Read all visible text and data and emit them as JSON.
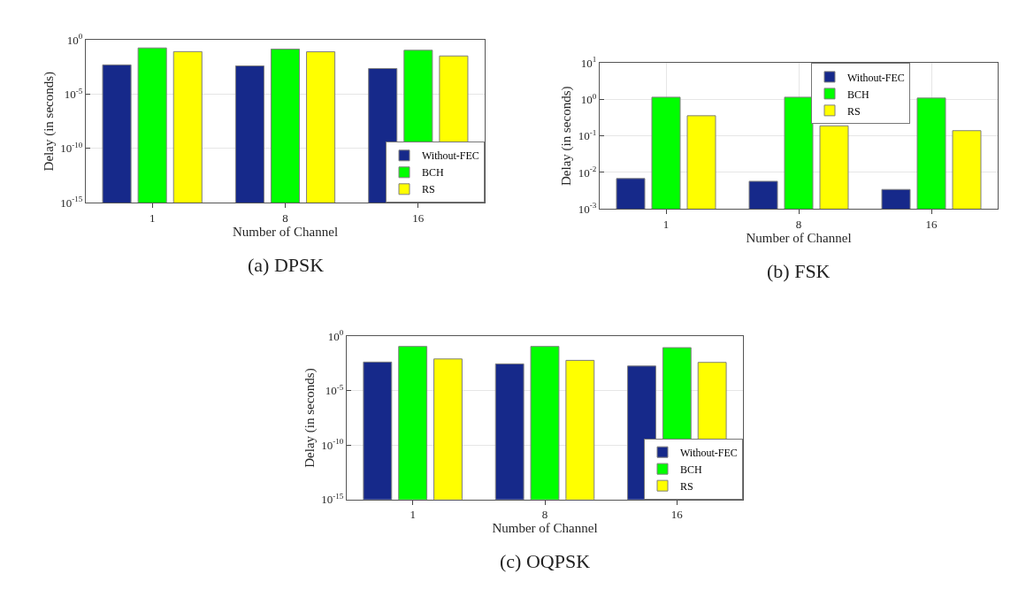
{
  "chart_data": [
    {
      "type": "bar",
      "title": "(a) DPSK",
      "xlabel": "Number of Channel",
      "ylabel": "Delay (in seconds)",
      "categories": [
        "1",
        "8",
        "16"
      ],
      "log": true,
      "grid": "y",
      "legend": "bottom right",
      "ylim": [
        1e-15,
        1
      ],
      "yticks": [
        {
          "value": 1e-15,
          "label": "10$^{-15}$"
        },
        {
          "value": 1e-10,
          "label": "10$^{-10}$"
        },
        {
          "value": 1e-05,
          "label": "10$^{-5}$"
        },
        {
          "value": 1,
          "label": "10$^{0}$"
        }
      ],
      "series": [
        {
          "name": "Without-FEC",
          "color": "#16298a",
          "values": [
            0.005,
            0.004,
            0.0023
          ]
        },
        {
          "name": "BCH",
          "color": "#00ff00",
          "values": [
            0.18,
            0.14,
            0.11
          ]
        },
        {
          "name": "RS",
          "color": "#ffff00",
          "values": [
            0.083,
            0.08,
            0.033
          ]
        }
      ]
    },
    {
      "type": "bar",
      "title": "(b) FSK",
      "xlabel": "Number of Channel",
      "ylabel": "Delay (in seconds)",
      "categories": [
        "1",
        "8",
        "16"
      ],
      "log": true,
      "grid": true,
      "legend": "top right",
      "ylim": [
        0.001,
        10
      ],
      "yticks": [
        {
          "value": 0.001,
          "label": "10$^{-3}$"
        },
        {
          "value": 0.01,
          "label": "10$^{-2}$"
        },
        {
          "value": 0.1,
          "label": "10$^{-1}$"
        },
        {
          "value": 1,
          "label": "10$^{0}$"
        },
        {
          "value": 10,
          "label": "10$^{1}$"
        }
      ],
      "series": [
        {
          "name": "Without-FEC",
          "color": "#16298a",
          "values": [
            0.0068,
            0.0057,
            0.0034
          ]
        },
        {
          "name": "BCH",
          "color": "#00ff00",
          "values": [
            1.16,
            1.16,
            1.1
          ]
        },
        {
          "name": "RS",
          "color": "#ffff00",
          "values": [
            0.36,
            0.19,
            0.14
          ]
        }
      ]
    },
    {
      "type": "bar",
      "title": "(c) OQPSK",
      "xlabel": "Number of Channel",
      "ylabel": "Delay (in seconds)",
      "categories": [
        "1",
        "8",
        "16"
      ],
      "log": true,
      "grid": "y",
      "legend": "bottom right",
      "ylim": [
        1e-15,
        1
      ],
      "yticks": [
        {
          "value": 1e-15,
          "label": "10$^{-15}$"
        },
        {
          "value": 1e-10,
          "label": "10$^{-10}$"
        },
        {
          "value": 1e-05,
          "label": "10$^{-5}$"
        },
        {
          "value": 1,
          "label": "10$^{0}$"
        }
      ],
      "series": [
        {
          "name": "Without-FEC",
          "color": "#16298a",
          "values": [
            0.0044,
            0.003,
            0.0019
          ]
        },
        {
          "name": "BCH",
          "color": "#00ff00",
          "values": [
            0.12,
            0.12,
            0.093
          ]
        },
        {
          "name": "RS",
          "color": "#ffff00",
          "values": [
            0.0085,
            0.0063,
            0.0041
          ]
        }
      ]
    }
  ]
}
